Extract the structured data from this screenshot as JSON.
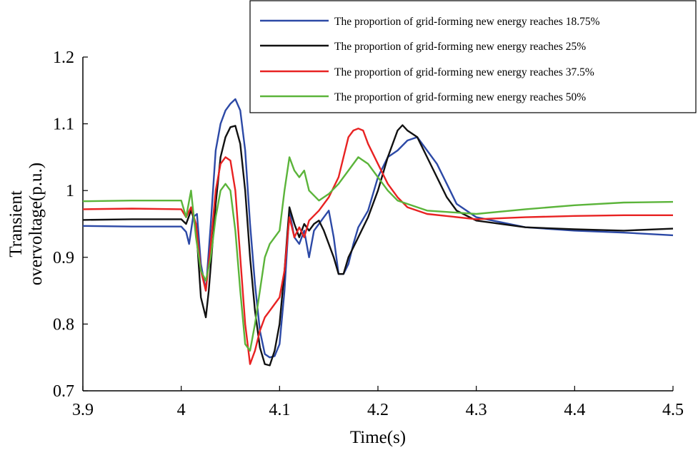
{
  "chart_data": {
    "type": "line",
    "title": "",
    "xlabel": "Time(s)",
    "ylabel_lines": [
      "Transient",
      "overvoltage(p.u.)"
    ],
    "xlim": [
      3.9,
      4.5
    ],
    "ylim": [
      0.7,
      1.2
    ],
    "xticks": [
      3.9,
      4.0,
      4.1,
      4.2,
      4.3,
      4.4,
      4.5
    ],
    "xtick_labels": [
      "3.9",
      "4",
      "4.1",
      "4.2",
      "4.3",
      "4.4",
      "4.5"
    ],
    "yticks": [
      0.7,
      0.8,
      0.9,
      1.0,
      1.1,
      1.2
    ],
    "ytick_labels": [
      "0.7",
      "0.8",
      "0.9",
      "1",
      "1.1",
      "1.2"
    ],
    "grid": false,
    "legend_position": "top-right",
    "series": [
      {
        "name": "The proportion of grid-forming new energy reaches 18.75%",
        "color": "#2c49a6",
        "x": [
          3.9,
          3.95,
          4.0,
          4.005,
          4.008,
          4.012,
          4.016,
          4.02,
          4.025,
          4.03,
          4.035,
          4.04,
          4.045,
          4.05,
          4.055,
          4.06,
          4.065,
          4.07,
          4.075,
          4.08,
          4.085,
          4.09,
          4.095,
          4.1,
          4.105,
          4.11,
          4.115,
          4.12,
          4.125,
          4.13,
          4.135,
          4.14,
          4.145,
          4.15,
          4.155,
          4.16,
          4.165,
          4.17,
          4.175,
          4.18,
          4.19,
          4.2,
          4.21,
          4.22,
          4.23,
          4.24,
          4.25,
          4.26,
          4.27,
          4.28,
          4.3,
          4.35,
          4.4,
          4.45,
          4.5
        ],
        "y": [
          0.947,
          0.946,
          0.946,
          0.938,
          0.92,
          0.96,
          0.965,
          0.89,
          0.85,
          0.95,
          1.06,
          1.1,
          1.12,
          1.13,
          1.137,
          1.12,
          1.06,
          0.95,
          0.86,
          0.79,
          0.755,
          0.75,
          0.752,
          0.77,
          0.85,
          0.97,
          0.93,
          0.92,
          0.94,
          0.9,
          0.94,
          0.95,
          0.96,
          0.97,
          0.93,
          0.875,
          0.875,
          0.89,
          0.92,
          0.945,
          0.97,
          1.02,
          1.05,
          1.06,
          1.075,
          1.08,
          1.06,
          1.04,
          1.01,
          0.98,
          0.96,
          0.945,
          0.94,
          0.937,
          0.933
        ]
      },
      {
        "name": "The proportion of grid-forming new energy reaches 25%",
        "color": "#111111",
        "x": [
          3.9,
          3.95,
          4.0,
          4.005,
          4.01,
          4.015,
          4.02,
          4.025,
          4.028,
          4.035,
          4.04,
          4.045,
          4.05,
          4.055,
          4.06,
          4.065,
          4.07,
          4.075,
          4.08,
          4.085,
          4.09,
          4.095,
          4.1,
          4.105,
          4.11,
          4.115,
          4.12,
          4.125,
          4.13,
          4.135,
          4.14,
          4.145,
          4.15,
          4.155,
          4.16,
          4.165,
          4.17,
          4.18,
          4.19,
          4.2,
          4.21,
          4.22,
          4.225,
          4.23,
          4.24,
          4.25,
          4.26,
          4.27,
          4.28,
          4.3,
          4.35,
          4.4,
          4.45,
          4.5
        ],
        "y": [
          0.956,
          0.957,
          0.957,
          0.95,
          0.97,
          0.95,
          0.84,
          0.81,
          0.85,
          0.98,
          1.05,
          1.08,
          1.095,
          1.097,
          1.07,
          1.0,
          0.9,
          0.82,
          0.765,
          0.74,
          0.738,
          0.76,
          0.8,
          0.88,
          0.975,
          0.95,
          0.93,
          0.95,
          0.94,
          0.95,
          0.955,
          0.94,
          0.92,
          0.9,
          0.875,
          0.875,
          0.9,
          0.93,
          0.96,
          1.0,
          1.05,
          1.09,
          1.098,
          1.09,
          1.08,
          1.05,
          1.02,
          0.99,
          0.97,
          0.955,
          0.945,
          0.942,
          0.94,
          0.943
        ]
      },
      {
        "name": "The proportion of grid-forming new energy reaches 37.5%",
        "color": "#e82222",
        "x": [
          3.9,
          3.95,
          4.0,
          4.005,
          4.01,
          4.015,
          4.02,
          4.025,
          4.03,
          4.035,
          4.04,
          4.045,
          4.05,
          4.055,
          4.06,
          4.065,
          4.07,
          4.075,
          4.08,
          4.085,
          4.09,
          4.1,
          4.105,
          4.11,
          4.115,
          4.12,
          4.125,
          4.13,
          4.14,
          4.15,
          4.16,
          4.165,
          4.17,
          4.175,
          4.18,
          4.185,
          4.19,
          4.2,
          4.21,
          4.22,
          4.23,
          4.25,
          4.3,
          4.35,
          4.4,
          4.45,
          4.5
        ],
        "y": [
          0.972,
          0.973,
          0.972,
          0.96,
          0.975,
          0.95,
          0.88,
          0.85,
          0.92,
          1.0,
          1.04,
          1.05,
          1.045,
          1.0,
          0.9,
          0.8,
          0.74,
          0.76,
          0.79,
          0.81,
          0.82,
          0.84,
          0.88,
          0.96,
          0.93,
          0.945,
          0.93,
          0.955,
          0.97,
          0.99,
          1.02,
          1.05,
          1.08,
          1.09,
          1.093,
          1.09,
          1.07,
          1.04,
          1.01,
          0.99,
          0.975,
          0.965,
          0.957,
          0.96,
          0.962,
          0.963,
          0.963
        ]
      },
      {
        "name": "The proportion of grid-forming new energy reaches 50%",
        "color": "#5bb43a",
        "x": [
          3.9,
          3.95,
          4.0,
          4.005,
          4.01,
          4.015,
          4.02,
          4.025,
          4.03,
          4.035,
          4.04,
          4.045,
          4.05,
          4.055,
          4.06,
          4.065,
          4.07,
          4.075,
          4.08,
          4.085,
          4.09,
          4.1,
          4.105,
          4.11,
          4.115,
          4.12,
          4.125,
          4.13,
          4.14,
          4.15,
          4.16,
          4.17,
          4.18,
          4.19,
          4.2,
          4.21,
          4.22,
          4.25,
          4.3,
          4.35,
          4.4,
          4.45,
          4.5
        ],
        "y": [
          0.984,
          0.985,
          0.985,
          0.96,
          1.0,
          0.93,
          0.88,
          0.865,
          0.9,
          0.96,
          1.0,
          1.01,
          1.0,
          0.94,
          0.85,
          0.77,
          0.76,
          0.8,
          0.85,
          0.9,
          0.92,
          0.94,
          1.0,
          1.05,
          1.03,
          1.02,
          1.03,
          1.0,
          0.985,
          0.995,
          1.01,
          1.03,
          1.05,
          1.04,
          1.02,
          1.0,
          0.985,
          0.97,
          0.965,
          0.972,
          0.978,
          0.982,
          0.983
        ]
      }
    ]
  }
}
